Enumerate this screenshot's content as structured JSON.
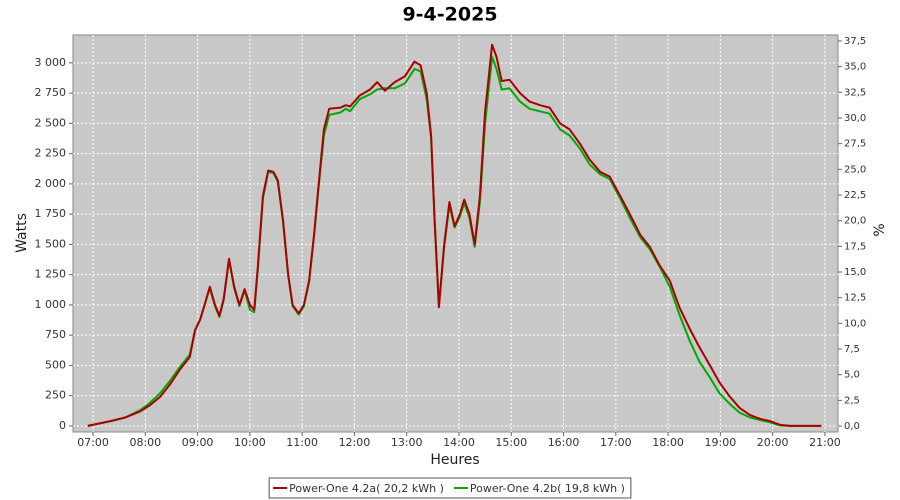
{
  "chart_data": {
    "type": "line",
    "title": "9-4-2025",
    "x_label": "Heures",
    "y_label": "Watts",
    "y2_label": "%",
    "x": [
      "06:54",
      "07:20",
      "07:37",
      "07:54",
      "08:05",
      "08:17",
      "08:28",
      "08:40",
      "08:51",
      "08:57",
      "09:03",
      "09:08",
      "09:14",
      "09:20",
      "09:25",
      "09:30",
      "09:36",
      "09:42",
      "09:48",
      "09:54",
      "10:00",
      "10:05",
      "10:09",
      "10:15",
      "10:21",
      "10:27",
      "10:32",
      "10:38",
      "10:44",
      "10:49",
      "10:56",
      "11:02",
      "11:08",
      "11:14",
      "11:19",
      "11:25",
      "11:31",
      "11:44",
      "11:50",
      "11:55",
      "12:06",
      "12:18",
      "12:26",
      "12:35",
      "12:46",
      "12:58",
      "13:09",
      "13:16",
      "13:23",
      "13:28",
      "13:32",
      "13:37",
      "13:43",
      "13:49",
      "13:55",
      "14:01",
      "14:06",
      "14:12",
      "14:18",
      "14:24",
      "14:30",
      "14:38",
      "14:43",
      "14:49",
      "14:58",
      "15:10",
      "15:21",
      "15:33",
      "15:44",
      "15:56",
      "16:07",
      "16:19",
      "16:30",
      "16:42",
      "16:53",
      "17:05",
      "17:16",
      "17:28",
      "17:39",
      "17:50",
      "18:02",
      "18:13",
      "18:25",
      "18:36",
      "18:48",
      "18:59",
      "19:11",
      "19:22",
      "19:34",
      "19:45",
      "19:57",
      "20:08",
      "20:20",
      "20:56"
    ],
    "series": [
      {
        "name": "Power-One 4.2a( 20,2 kWh )",
        "color": "#aa0000",
        "values": [
          0,
          40,
          70,
          120,
          170,
          240,
          340,
          470,
          570,
          790,
          880,
          1000,
          1150,
          1000,
          910,
          1050,
          1380,
          1150,
          1000,
          1130,
          1000,
          960,
          1300,
          1900,
          2110,
          2100,
          2030,
          1700,
          1250,
          1000,
          930,
          1000,
          1200,
          1600,
          2000,
          2450,
          2620,
          2630,
          2650,
          2640,
          2730,
          2780,
          2840,
          2770,
          2840,
          2890,
          3010,
          2980,
          2750,
          2400,
          1700,
          980,
          1500,
          1850,
          1650,
          1750,
          1870,
          1750,
          1500,
          1900,
          2600,
          3150,
          3050,
          2850,
          2860,
          2750,
          2680,
          2650,
          2630,
          2500,
          2450,
          2330,
          2200,
          2100,
          2060,
          1900,
          1750,
          1580,
          1480,
          1330,
          1200,
          980,
          800,
          650,
          500,
          360,
          240,
          150,
          90,
          60,
          40,
          10,
          0,
          0
        ]
      },
      {
        "name": "Power-One 4.2b( 19,8 kWh )",
        "color": "#00aa00",
        "values": [
          0,
          40,
          70,
          130,
          190,
          270,
          370,
          490,
          590,
          790,
          880,
          1000,
          1140,
          990,
          900,
          1040,
          1370,
          1140,
          990,
          1120,
          960,
          940,
          1280,
          1880,
          2100,
          2090,
          2020,
          1690,
          1240,
          990,
          920,
          990,
          1190,
          1590,
          1980,
          2400,
          2570,
          2590,
          2620,
          2600,
          2700,
          2740,
          2780,
          2790,
          2790,
          2830,
          2950,
          2930,
          2700,
          2380,
          1700,
          1000,
          1480,
          1820,
          1640,
          1730,
          1840,
          1720,
          1480,
          1850,
          2500,
          3050,
          2950,
          2780,
          2790,
          2680,
          2620,
          2600,
          2580,
          2450,
          2400,
          2290,
          2160,
          2080,
          2040,
          1880,
          1720,
          1560,
          1460,
          1320,
          1150,
          920,
          700,
          530,
          400,
          270,
          180,
          110,
          70,
          50,
          30,
          5,
          0,
          0
        ]
      }
    ],
    "xlim": [
      "06:37",
      "21:15"
    ],
    "xticks": [
      "07:00",
      "08:00",
      "09:00",
      "10:00",
      "11:00",
      "12:00",
      "13:00",
      "14:00",
      "15:00",
      "16:00",
      "17:00",
      "18:00",
      "19:00",
      "20:00",
      "21:00"
    ],
    "ylim": [
      -50,
      3230
    ],
    "yticks": [
      0,
      250,
      500,
      750,
      {
        "value": 1000,
        "label": "1 000"
      },
      {
        "value": 1250,
        "label": "1 250"
      },
      {
        "value": 1500,
        "label": "1 500"
      },
      {
        "value": 1750,
        "label": "1 750"
      },
      {
        "value": 2000,
        "label": "2 000"
      },
      {
        "value": 2250,
        "label": "2 250"
      },
      {
        "value": 2500,
        "label": "2 500"
      },
      {
        "value": 2750,
        "label": "2 750"
      },
      {
        "value": 3000,
        "label": "3 000"
      }
    ],
    "y2lim": [
      -0.58,
      38.08
    ],
    "y2ticks": [
      {
        "value": 0,
        "label": "0,0"
      },
      {
        "value": 2.5,
        "label": "2,5"
      },
      {
        "value": 5,
        "label": "5,0"
      },
      {
        "value": 7.5,
        "label": "7,5"
      },
      {
        "value": 10,
        "label": "10,0"
      },
      {
        "value": 12.5,
        "label": "12,5"
      },
      {
        "value": 15,
        "label": "15,0"
      },
      {
        "value": 17.5,
        "label": "17,5"
      },
      {
        "value": 20,
        "label": "20,0"
      },
      {
        "value": 22.5,
        "label": "22,5"
      },
      {
        "value": 25,
        "label": "25,0"
      },
      {
        "value": 27.5,
        "label": "27,5"
      },
      {
        "value": 30,
        "label": "30,0"
      },
      {
        "value": 32.5,
        "label": "32,5"
      },
      {
        "value": 35,
        "label": "35,0"
      },
      {
        "value": 37.5,
        "label": "37,5"
      }
    ],
    "grid": true,
    "legend": "bottom"
  }
}
